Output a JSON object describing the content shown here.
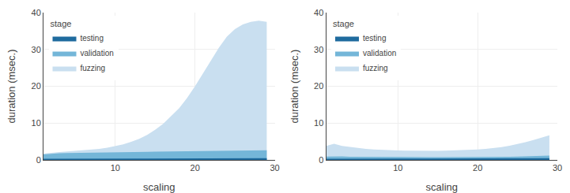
{
  "chart_data": [
    {
      "type": "area",
      "stacked": false,
      "grid": true,
      "legend": "upper left",
      "legend_title": "stage",
      "xlabel": "scaling",
      "ylabel": "duration (msec.)",
      "xlim": [
        1,
        30
      ],
      "xticks": [
        10,
        20,
        30
      ],
      "ylim": [
        0,
        40
      ],
      "yticks": [
        0,
        10,
        20,
        30,
        40
      ],
      "x": [
        1,
        2,
        3,
        4,
        5,
        6,
        7,
        8,
        9,
        10,
        11,
        12,
        13,
        14,
        15,
        16,
        17,
        18,
        19,
        20,
        21,
        22,
        23,
        24,
        25,
        26,
        27,
        28,
        29
      ],
      "series": [
        {
          "name": "testing",
          "color": "#1f6b9e",
          "values": [
            0.3,
            0.32,
            0.33,
            0.34,
            0.35,
            0.36,
            0.37,
            0.37,
            0.38,
            0.38,
            0.39,
            0.39,
            0.4,
            0.4,
            0.41,
            0.41,
            0.42,
            0.42,
            0.43,
            0.43,
            0.44,
            0.44,
            0.45,
            0.45,
            0.46,
            0.46,
            0.47,
            0.47,
            0.48
          ]
        },
        {
          "name": "validation",
          "color": "#74b6d8",
          "values": [
            1.5,
            1.7,
            1.8,
            1.85,
            1.9,
            1.95,
            2.0,
            2.0,
            2.05,
            2.1,
            2.12,
            2.15,
            2.18,
            2.2,
            2.22,
            2.25,
            2.28,
            2.3,
            2.33,
            2.36,
            2.39,
            2.42,
            2.45,
            2.48,
            2.5,
            2.53,
            2.55,
            2.58,
            2.6
          ]
        },
        {
          "name": "fuzzing",
          "color": "#c9dff0",
          "values": [
            1.7,
            2.0,
            2.15,
            2.3,
            2.45,
            2.6,
            2.8,
            3.0,
            3.3,
            3.7,
            4.2,
            4.9,
            5.7,
            6.8,
            8.2,
            9.8,
            11.8,
            14.0,
            16.8,
            20.0,
            23.5,
            27.0,
            30.5,
            33.5,
            35.5,
            36.8,
            37.5,
            37.8,
            37.5
          ]
        }
      ]
    },
    {
      "type": "area",
      "stacked": false,
      "grid": true,
      "legend": "upper left",
      "legend_title": "stage",
      "xlabel": "scaling",
      "ylabel": "duration (msec.)",
      "xlim": [
        1,
        30
      ],
      "xticks": [
        10,
        20,
        30
      ],
      "ylim": [
        0,
        40
      ],
      "yticks": [
        0,
        10,
        20,
        30,
        40
      ],
      "x": [
        1,
        2,
        3,
        4,
        5,
        6,
        7,
        8,
        9,
        10,
        11,
        12,
        13,
        14,
        15,
        16,
        17,
        18,
        19,
        20,
        21,
        22,
        23,
        24,
        25,
        26,
        27,
        28,
        29
      ],
      "series": [
        {
          "name": "testing",
          "color": "#1f6b9e",
          "values": [
            0.3,
            0.32,
            0.33,
            0.34,
            0.35,
            0.36,
            0.37,
            0.37,
            0.38,
            0.38,
            0.39,
            0.39,
            0.4,
            0.4,
            0.41,
            0.41,
            0.42,
            0.42,
            0.43,
            0.43,
            0.44,
            0.44,
            0.45,
            0.45,
            0.46,
            0.46,
            0.47,
            0.47,
            0.48
          ]
        },
        {
          "name": "validation",
          "color": "#74b6d8",
          "values": [
            0.9,
            1.0,
            0.95,
            0.88,
            0.85,
            0.82,
            0.8,
            0.78,
            0.76,
            0.75,
            0.74,
            0.73,
            0.73,
            0.73,
            0.74,
            0.74,
            0.75,
            0.76,
            0.77,
            0.79,
            0.81,
            0.83,
            0.85,
            0.88,
            0.92,
            0.96,
            1.02,
            1.08,
            1.15
          ]
        },
        {
          "name": "fuzzing",
          "color": "#c9dff0",
          "values": [
            3.8,
            4.4,
            3.8,
            3.5,
            3.2,
            3.0,
            2.85,
            2.72,
            2.62,
            2.55,
            2.5,
            2.45,
            2.42,
            2.42,
            2.45,
            2.5,
            2.55,
            2.62,
            2.7,
            2.85,
            3.0,
            3.2,
            3.5,
            3.85,
            4.3,
            4.8,
            5.4,
            6.0,
            6.7
          ]
        }
      ]
    }
  ]
}
